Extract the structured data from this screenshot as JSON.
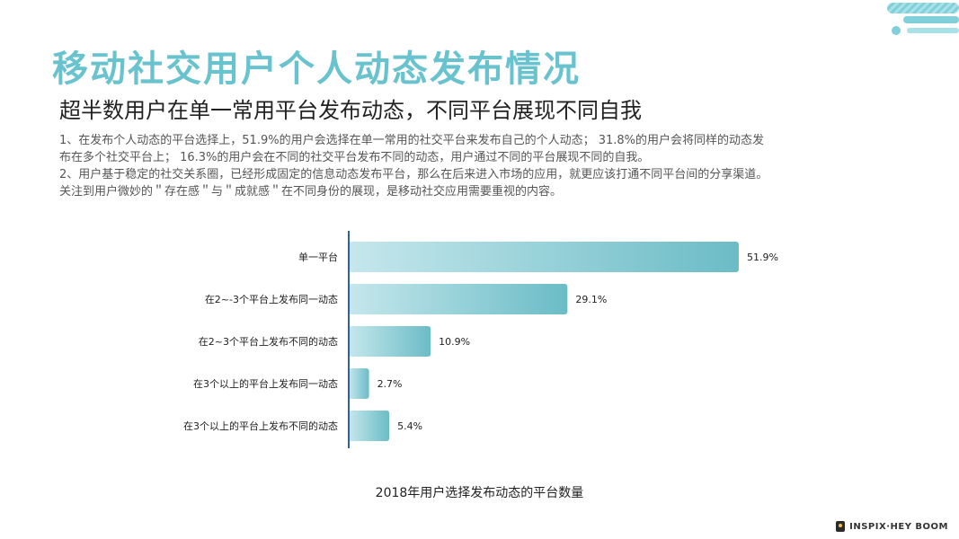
{
  "header": {
    "title": "移动社交用户个人动态发布情况",
    "subtitle": "超半数用户在单一常用平台发布动态，不同平台展现不同自我"
  },
  "body": {
    "lines": [
      "1、在发布个人动态的平台选择上，51.9%的用户会选择在单一常用的社交平台来发布自己的个人动态；  31.8%的用户会将同样的动态发",
      "布在多个社交平台上；  16.3%的用户会在不同的社交平台发布不同的动态，用户通过不同的平台展现不同的自我。",
      "2、用户基于稳定的社交关系圈，已经形成固定的信息动态发布平台，那么在后来进入市场的应用，就更应该打通不同平台间的分享渠道。",
      "关注到用户微妙的＂存在感＂与＂成就感＂在不同身份的展现，是移动社交应用需要重视的内容。"
    ]
  },
  "chart_data": {
    "type": "bar",
    "orientation": "horizontal",
    "categories": [
      "单一平台",
      "在2~-3个平台上发布同一动态",
      "在2~3个平台上发布不同的动态",
      "在3个以上的平台上发布同一动态",
      "在3个以上的平台上发布不同的动态"
    ],
    "values": [
      51.9,
      29.1,
      10.9,
      2.7,
      5.4
    ],
    "value_labels": [
      "51.9%",
      "29.1%",
      "10.9%",
      "2.7%",
      "5.4%"
    ],
    "caption": "2018年用户选择发布动态的平台数量",
    "xlim": [
      0,
      51.9
    ],
    "grid": false,
    "legend": "none",
    "bar_color_start": "#c5e7ec",
    "bar_color_end": "#6bbcc6",
    "axis_color": "#2f5fa5"
  },
  "colors": {
    "accent": "#69c3cf"
  },
  "footer": {
    "brand": "INSPIX·HEY BOOM"
  }
}
